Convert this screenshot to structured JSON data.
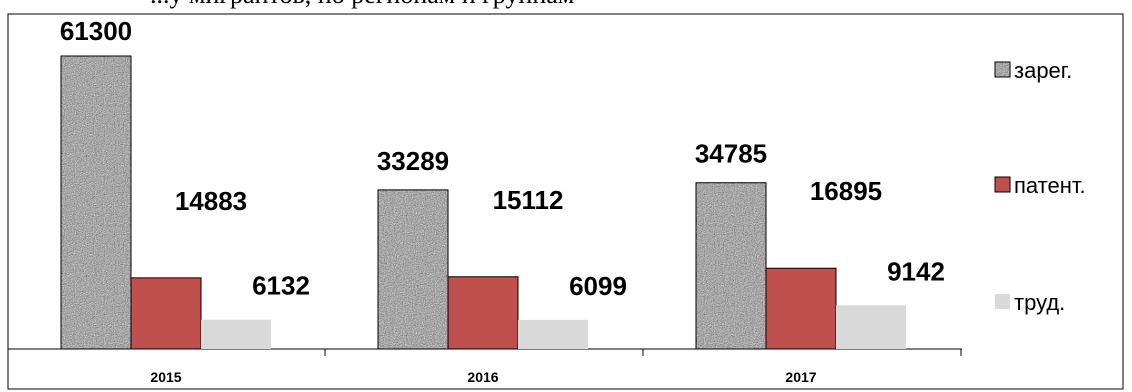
{
  "top_text": "...у мигрантов, по регионам и группам",
  "chart_data": {
    "type": "bar",
    "categories": [
      "2015",
      "2016",
      "2017"
    ],
    "series": [
      {
        "name": "зарег.",
        "values": [
          61300,
          33289,
          34785
        ],
        "color": "#9a9a9a",
        "pattern": "noise"
      },
      {
        "name": "патент.",
        "values": [
          14883,
          15112,
          16895
        ],
        "color": "#c0504d"
      },
      {
        "name": "труд.",
        "values": [
          6132,
          6099,
          9142
        ],
        "color": "#d9d9d9"
      }
    ],
    "ylim": [
      0,
      61300
    ],
    "grid": false,
    "legend": "right",
    "data_labels": true
  }
}
